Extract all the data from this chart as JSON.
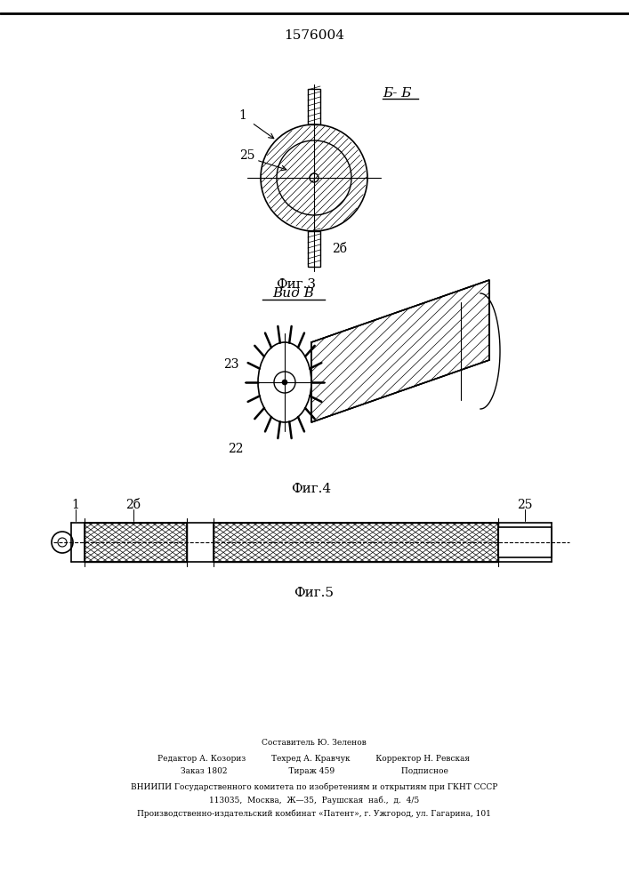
{
  "title": "1576004",
  "fig3_label": "Б- Б",
  "fig3_caption": "Фиг.3",
  "fig4_label": "Вид В",
  "fig4_caption": "Фиг.4",
  "fig5_caption": "Фиг.5",
  "label_1": "1",
  "label_25": "25",
  "label_26": "2б",
  "label_22": "22",
  "label_23": "23",
  "label_1b": "1",
  "label_2b_fig5": "2б",
  "label_25_fig5": "25",
  "footer_line1": "Составитель Ю. Зеленов",
  "footer_line2": "Редактор А. Козориз          Техред А. Кравчук          Корректор Н. Ревская",
  "footer_line3": "Заказ 1802                        Тираж 459                          Подписное",
  "footer_line4": "ВНИИПИ Государственного комитета по изобретениям и открытиям при ГКНТ СССР",
  "footer_line5": "113035,  Москва,  Ж—35,  Раушская  наб.,  д.  4/5",
  "footer_line6": "Производственно-издательский комбинат «Патент», г. Ужгород, ул. Гагарина, 101",
  "line_color": "#000000",
  "hatch_color": "#000000",
  "bg_color": "#ffffff"
}
